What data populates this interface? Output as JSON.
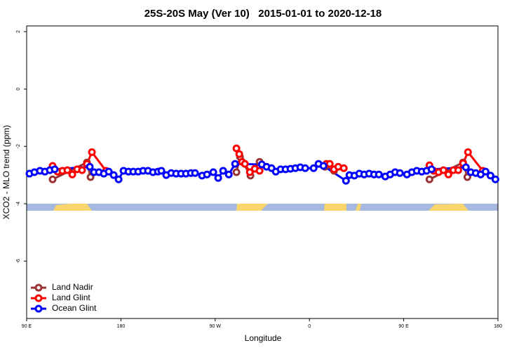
{
  "chart_data": {
    "type": "line",
    "title": "25S-20S May (Ver 10)   2015-01-01 to 2020-12-18",
    "x_label": "Longitude",
    "y_label": "XCO2 - MLO trend (ppm)",
    "xlim": [
      90,
      540
    ],
    "xticks": [
      {
        "value": 90,
        "label": "90 E"
      },
      {
        "value": 180,
        "label": "180"
      },
      {
        "value": 270,
        "label": "90 W"
      },
      {
        "value": 360,
        "label": "0"
      },
      {
        "value": 450,
        "label": "90 E"
      },
      {
        "value": 540,
        "label": "180"
      }
    ],
    "ylim": [
      -8,
      2.2
    ],
    "yticks": [
      2,
      0,
      -2,
      -4,
      -6
    ],
    "legend": "bottomleft",
    "series": [
      {
        "name": "Land Nadir",
        "color": "#993333",
        "x": [
          114.8,
          147.6,
          151.0,
          null,
          290.3,
          293.7,
          303.7,
          312.4,
          null,
          374.8,
          383.5,
          null,
          474.6,
          506.7,
          510.8
        ],
        "values": [
          -3.15,
          -2.56,
          -3.07,
          null,
          -2.9,
          -2.37,
          -3.02,
          -2.54,
          null,
          -2.71,
          -2.85,
          null,
          -3.15,
          -2.56,
          -3.07
        ]
      },
      {
        "name": "Land Glint",
        "color": "#ff0000",
        "x": [
          114.8,
          119.5,
          124.2,
          128.9,
          133.6,
          138.2,
          142.9,
          147.6,
          152.3,
          165.7,
          null,
          290.3,
          293.0,
          295.7,
          298.4,
          303.1,
          307.8,
          312.4,
          null,
          376.1,
          379.4,
          383.5,
          387.5,
          392.8,
          null,
          474.6,
          478.6,
          483.3,
          488.0,
          492.7,
          497.4,
          502.1,
          506.7,
          511.4,
          525.5
        ],
        "values": [
          -2.68,
          -2.88,
          -2.85,
          -2.83,
          -2.98,
          -2.8,
          -2.83,
          -2.61,
          -2.2,
          -2.85,
          null,
          -2.07,
          -2.27,
          -2.54,
          -2.61,
          -2.9,
          -2.78,
          -2.85,
          null,
          -2.61,
          -2.61,
          -2.8,
          -2.71,
          -2.76,
          null,
          -2.66,
          -2.85,
          -2.9,
          -2.83,
          -2.98,
          -2.83,
          -2.83,
          -2.59,
          -2.2,
          -2.85
        ]
      },
      {
        "name": "Ocean Glint",
        "color": "#0000ff",
        "x": [
          92.7,
          97.4,
          102.7,
          107.4,
          112.1,
          116.8,
          150.3,
          154.3,
          159.0,
          163.7,
          168.4,
          173.1,
          177.8,
          182.5,
          187.2,
          191.8,
          196.5,
          201.2,
          205.9,
          210.6,
          215.3,
          218.6,
          223.3,
          228.0,
          232.7,
          237.4,
          242.1,
          246.8,
          250.8,
          257.5,
          262.2,
          268.2,
          272.9,
          277.6,
          283.0,
          289.0,
          314.5,
          319.1,
          323.8,
          327.9,
          332.5,
          337.2,
          341.9,
          346.6,
          351.3,
          356.0,
          364.0,
          368.7,
          373.4,
          394.9,
          398.2,
          402.9,
          407.6,
          412.3,
          417.0,
          421.7,
          426.3,
          432.4,
          437.1,
          441.8,
          446.4,
          453.1,
          457.8,
          462.5,
          467.2,
          471.9,
          476.6,
          509.4,
          514.1,
          518.8,
          523.5,
          528.2,
          532.9,
          537.6
        ],
        "values": [
          -2.95,
          -2.9,
          -2.85,
          -2.88,
          -2.83,
          -2.8,
          -2.71,
          -2.9,
          -2.9,
          -2.95,
          -2.88,
          -3.0,
          -3.15,
          -2.85,
          -2.88,
          -2.88,
          -2.88,
          -2.85,
          -2.85,
          -2.9,
          -2.88,
          -2.85,
          -3.0,
          -2.93,
          -2.95,
          -2.95,
          -2.95,
          -2.93,
          -2.93,
          -3.02,
          -2.98,
          -2.9,
          -3.1,
          -2.85,
          -2.98,
          -2.61,
          -2.63,
          -2.71,
          -2.76,
          -2.88,
          -2.8,
          -2.8,
          -2.78,
          -2.76,
          -2.73,
          -2.76,
          -2.76,
          -2.61,
          -2.68,
          -3.2,
          -3.0,
          -3.02,
          -2.95,
          -2.98,
          -2.95,
          -2.98,
          -2.98,
          -3.05,
          -2.98,
          -2.9,
          -2.93,
          -2.98,
          -2.9,
          -2.85,
          -2.88,
          -2.85,
          -2.8,
          -2.73,
          -2.9,
          -2.93,
          -2.98,
          -2.88,
          -3.02,
          -3.15
        ]
      }
    ]
  }
}
